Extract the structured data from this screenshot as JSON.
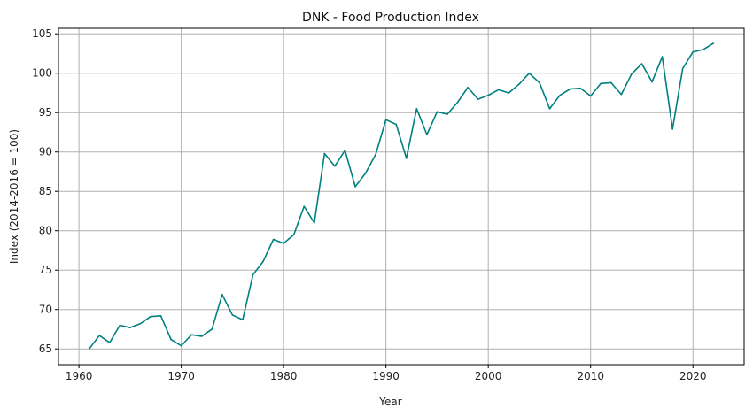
{
  "chart_data": {
    "type": "line",
    "title": "DNK - Food Production Index",
    "xlabel": "Year",
    "ylabel": "Index (2014-2016 = 100)",
    "xlim": [
      1958,
      2025
    ],
    "ylim": [
      63,
      105.7
    ],
    "xticks": [
      1960,
      1970,
      1980,
      1990,
      2000,
      2010,
      2020
    ],
    "yticks": [
      65,
      70,
      75,
      80,
      85,
      90,
      95,
      100,
      105
    ],
    "grid": true,
    "line_color": "#008080",
    "series": [
      {
        "x": [
          1961,
          1962,
          1963,
          1964,
          1965,
          1966,
          1967,
          1968,
          1969,
          1970,
          1971,
          1972,
          1973,
          1974,
          1975,
          1976,
          1977,
          1978,
          1979,
          1980,
          1981,
          1982,
          1983,
          1984,
          1985,
          1986,
          1987,
          1988,
          1989,
          1990,
          1991,
          1992,
          1993,
          1994,
          1995,
          1996,
          1997,
          1998,
          1999,
          2000,
          2001,
          2002,
          2003,
          2004,
          2005,
          2006,
          2007,
          2008,
          2009,
          2010,
          2011,
          2012,
          2013,
          2014,
          2015,
          2016,
          2017,
          2018,
          2019,
          2020,
          2021,
          2022
        ],
        "values": [
          65.0,
          66.7,
          65.8,
          68.0,
          67.7,
          68.2,
          69.1,
          69.2,
          66.2,
          65.4,
          66.8,
          66.6,
          67.5,
          71.9,
          69.3,
          68.7,
          74.4,
          76.1,
          78.9,
          78.4,
          79.5,
          83.1,
          81.0,
          89.8,
          88.2,
          90.2,
          85.6,
          87.3,
          89.7,
          94.1,
          93.5,
          89.2,
          95.5,
          92.2,
          95.1,
          94.8,
          96.3,
          98.2,
          96.7,
          97.2,
          97.9,
          97.5,
          98.6,
          100.0,
          98.8,
          95.5,
          97.2,
          98.0,
          98.1,
          97.1,
          98.7,
          98.8,
          97.3,
          99.9,
          101.2,
          98.9,
          102.1,
          92.9,
          100.6,
          102.7,
          103.0,
          103.8
        ]
      }
    ]
  }
}
